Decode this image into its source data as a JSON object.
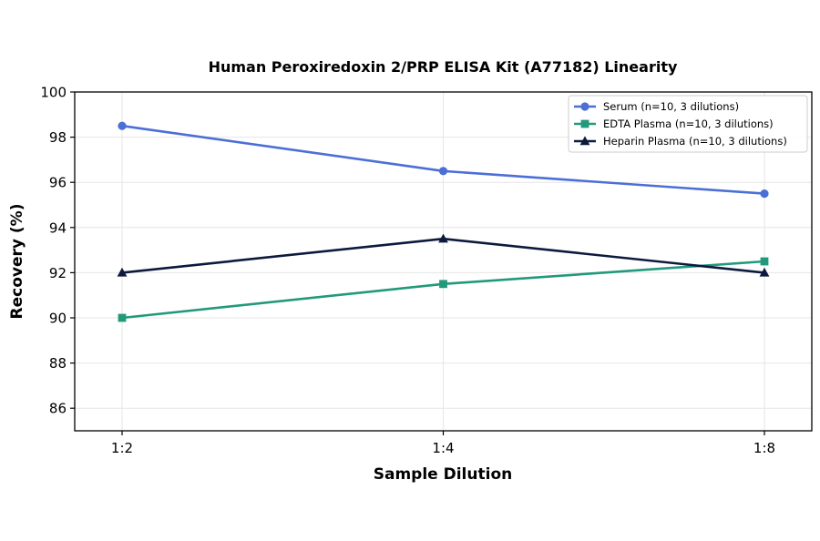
{
  "chart_data": {
    "type": "line",
    "title": "Human Peroxiredoxin 2/PRP ELISA Kit (A77182) Linearity",
    "xlabel": "Sample Dilution",
    "ylabel": "Recovery (%)",
    "categories": [
      "1:2",
      "1:4",
      "1:8"
    ],
    "ylim": [
      85,
      100
    ],
    "yticks": [
      86,
      88,
      90,
      92,
      94,
      96,
      98,
      100
    ],
    "grid": true,
    "legend_position": "top-right",
    "series": [
      {
        "name": "Serum (n=10, 3 dilutions)",
        "values": [
          98.5,
          96.5,
          95.5
        ],
        "color": "#4c6fd6",
        "marker": "circle"
      },
      {
        "name": "EDTA Plasma (n=10, 3 dilutions)",
        "values": [
          90.0,
          91.5,
          92.5
        ],
        "color": "#22997a",
        "marker": "square"
      },
      {
        "name": "Heparin Plasma (n=10, 3 dilutions)",
        "values": [
          92.0,
          93.5,
          92.0
        ],
        "color": "#0d1a3e",
        "marker": "triangle"
      }
    ]
  }
}
